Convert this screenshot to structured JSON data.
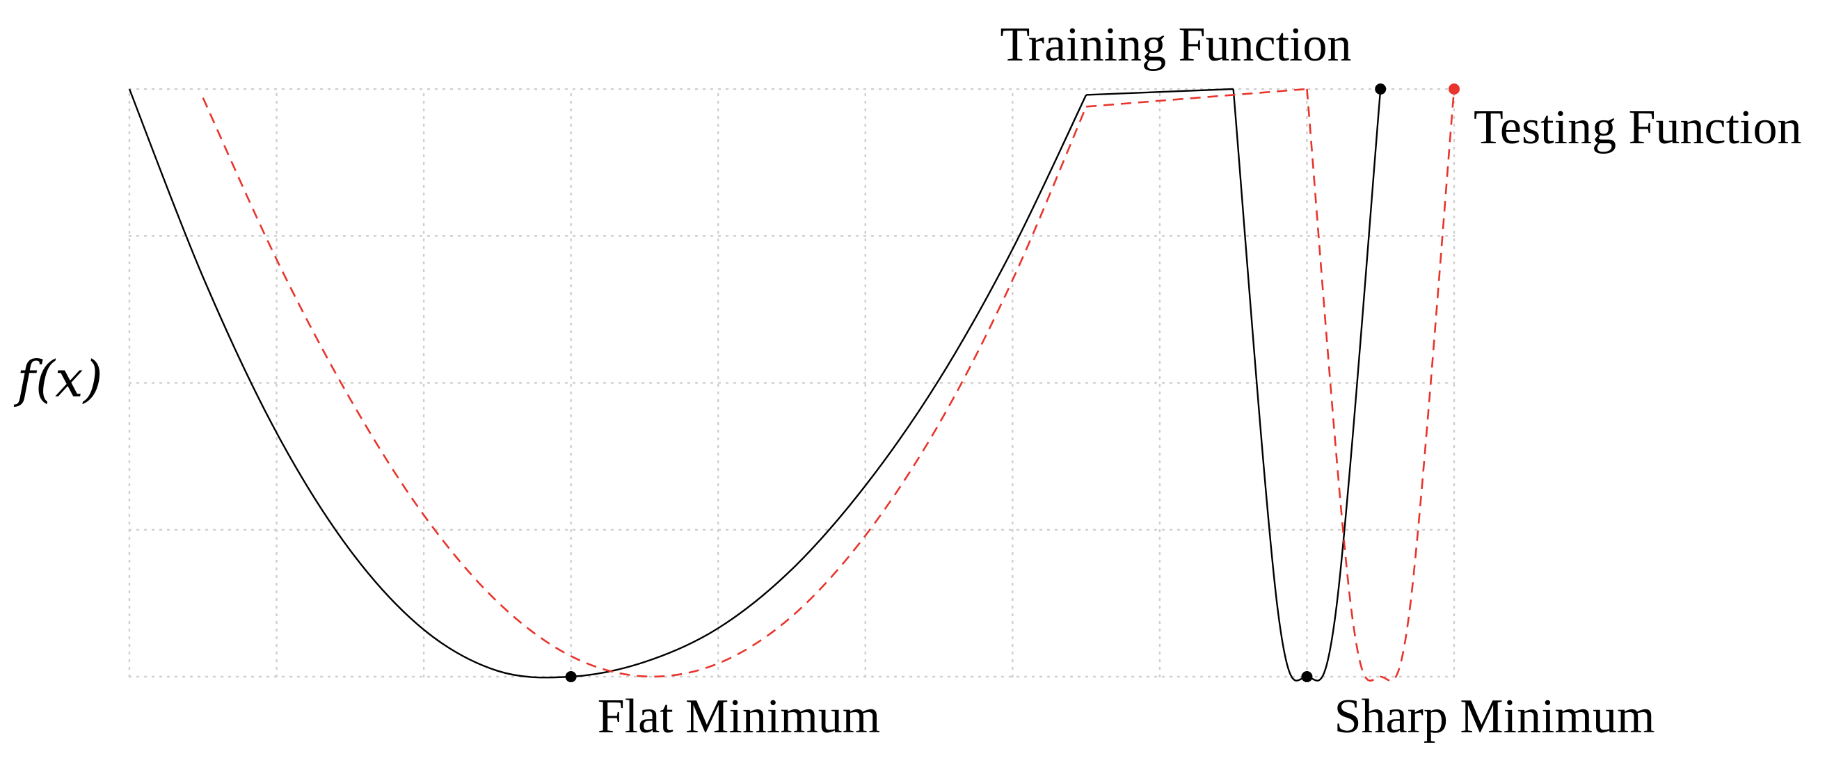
{
  "chart_data": {
    "type": "line",
    "title": "",
    "xlabel": "",
    "ylabel": "f(x)",
    "grid": true,
    "xlim": [
      0,
      9
    ],
    "ylim": [
      0,
      4
    ],
    "series": [
      {
        "name": "Training Function",
        "color": "#000000",
        "style": "solid",
        "points": [
          [
            0,
            4
          ],
          [
            0.5,
            2.72
          ],
          [
            1,
            1.66
          ],
          [
            1.5,
            0.86
          ],
          [
            2,
            0.32
          ],
          [
            2.5,
            0.04
          ],
          [
            3,
            0
          ],
          [
            3.5,
            0.1
          ],
          [
            4,
            0.33
          ],
          [
            4.5,
            0.73
          ],
          [
            5,
            1.3
          ],
          [
            5.5,
            2.02
          ],
          [
            6,
            2.91
          ],
          [
            6.5,
            3.96
          ],
          [
            7.5,
            4
          ],
          [
            7.8,
            0.47
          ],
          [
            8,
            0
          ],
          [
            8.2,
            0.47
          ],
          [
            8.5,
            4
          ]
        ]
      },
      {
        "name": "Testing Function",
        "color": "#e8342c",
        "style": "dashed",
        "points": [
          [
            0.5,
            3.94
          ],
          [
            1,
            2.84
          ],
          [
            1.5,
            1.89
          ],
          [
            2,
            1.1
          ],
          [
            2.5,
            0.51
          ],
          [
            3,
            0.14
          ],
          [
            3.5,
            0.002
          ],
          [
            4,
            0.09
          ],
          [
            4.5,
            0.41
          ],
          [
            5,
            0.96
          ],
          [
            5.5,
            1.72
          ],
          [
            6,
            2.7
          ],
          [
            6.5,
            3.88
          ],
          [
            8,
            4
          ],
          [
            8.3,
            0.47
          ],
          [
            8.5,
            0
          ],
          [
            8.7,
            0.47
          ],
          [
            9,
            4
          ]
        ]
      }
    ],
    "markers": [
      {
        "x": 3,
        "y": 0,
        "color": "#000000"
      },
      {
        "x": 8,
        "y": 0,
        "color": "#000000"
      },
      {
        "x": 8.5,
        "y": 4,
        "color": "#000000"
      },
      {
        "x": 9,
        "y": 4,
        "color": "#e8342c"
      }
    ],
    "annotations": [
      {
        "text": "Training Function",
        "color": "#000000"
      },
      {
        "text": "Testing Function",
        "color": "#e8342c"
      },
      {
        "text": "Flat Minimum",
        "color": "#000000"
      },
      {
        "text": "Sharp Minimum",
        "color": "#000000"
      }
    ]
  }
}
